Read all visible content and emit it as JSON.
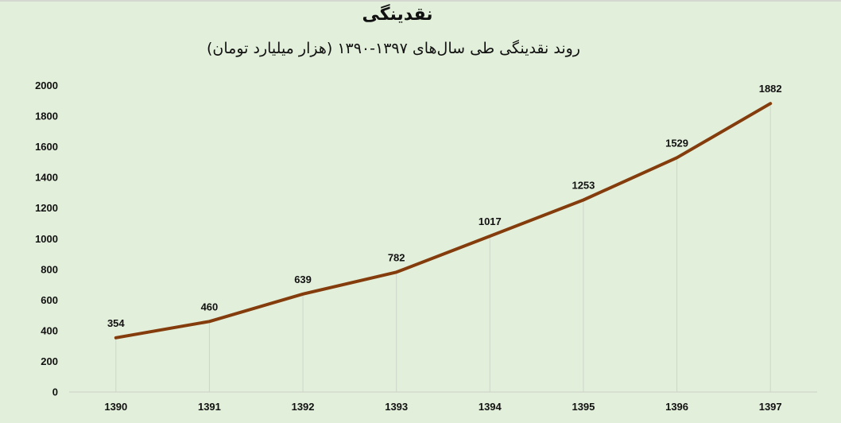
{
  "chart": {
    "title": "نقدینگی",
    "subtitle": "روند نقدینگی طی سال‌های ۱۳۹۷-۱۳۹۰ (هزار میلیارد تومان)"
  },
  "colors": {
    "background": "#E2EFDA",
    "line": "#843C0C",
    "gridline": "#CFD5CB",
    "text": "#111111"
  },
  "chart_data": {
    "type": "line",
    "title": "نقدینگی",
    "subtitle": "روند نقدینگی طی سال‌های ۱۳۹۷-۱۳۹۰ (هزار میلیارد تومان)",
    "xlabel": "",
    "ylabel": "",
    "categories": [
      "1390",
      "1391",
      "1392",
      "1393",
      "1394",
      "1395",
      "1396",
      "1397"
    ],
    "series": [
      {
        "name": "نقدینگی",
        "values": [
          354,
          460,
          639,
          782,
          1017,
          1253,
          1529,
          1882
        ]
      }
    ],
    "yticks": [
      "0",
      "200",
      "400",
      "600",
      "800",
      "1000",
      "1200",
      "1400",
      "1600",
      "1800",
      "2000"
    ],
    "ylim": [
      0,
      2000
    ],
    "data_labels": true,
    "grid": "vertical drop lines at each category",
    "legend": "none"
  }
}
